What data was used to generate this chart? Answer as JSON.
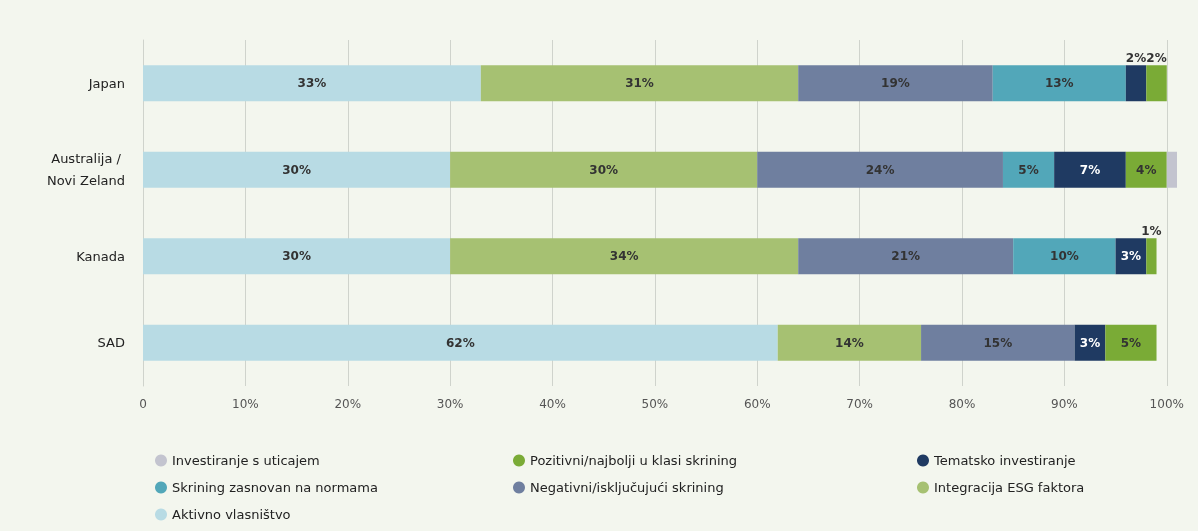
{
  "chart_data": {
    "type": "bar",
    "orientation": "horizontal",
    "stacked": true,
    "categories": [
      "Japan",
      "Australija / Novi Zeland",
      "Kanada",
      "SAD"
    ],
    "series": [
      {
        "name": "Aktivno vlasništvo",
        "color": "#b8dbe4",
        "values": [
          33,
          30,
          30,
          62
        ],
        "value_labels": [
          "33%",
          "30%",
          "30%",
          "62%"
        ]
      },
      {
        "name": "Integracija ESG faktora",
        "color": "#a6c172",
        "values": [
          31,
          30,
          34,
          14
        ],
        "value_labels": [
          "31%",
          "30%",
          "34%",
          "14%"
        ]
      },
      {
        "name": "Negativni/isključujući skrining",
        "color": "#6f7f9f",
        "values": [
          19,
          24,
          21,
          15
        ],
        "value_labels": [
          "19%",
          "24%",
          "21%",
          "15%"
        ]
      },
      {
        "name": "Skrining zasnovan na normama",
        "color": "#52a7b9",
        "values": [
          13,
          5,
          10,
          null
        ],
        "value_labels": [
          "13%",
          "5%",
          "10%",
          null
        ]
      },
      {
        "name": "Tematsko investiranje",
        "color": "#1f3a62",
        "values": [
          2,
          7,
          3,
          3
        ],
        "value_labels": [
          "2%",
          "7%",
          "3%",
          "3%"
        ]
      },
      {
        "name": "Pozitivni/najbolji u klasi skrining",
        "color": "#7aab36",
        "values": [
          2,
          4,
          1,
          5
        ],
        "value_labels": [
          "2%",
          "4%",
          "1%",
          "5%"
        ]
      },
      {
        "name": "Investiranje s uticajem",
        "color": "#c3c4cf",
        "values": [
          null,
          1,
          null,
          null
        ],
        "value_labels": [
          null,
          null,
          null,
          null
        ]
      }
    ],
    "xlim": [
      0,
      101
    ],
    "xticks": [
      0,
      {
        "value": 10,
        "label": "10%"
      },
      {
        "value": 20,
        "label": "20%"
      },
      {
        "value": 30,
        "label": "30%"
      },
      {
        "value": 40,
        "label": "40%"
      },
      {
        "value": 50,
        "label": "50%"
      },
      {
        "value": 60,
        "label": "60%"
      },
      {
        "value": 70,
        "label": "70%"
      },
      {
        "value": 80,
        "label": "80%"
      },
      {
        "value": 90,
        "label": "90%"
      },
      {
        "value": 100,
        "label": "100%"
      }
    ],
    "grid": "x",
    "legend": "bottom"
  }
}
